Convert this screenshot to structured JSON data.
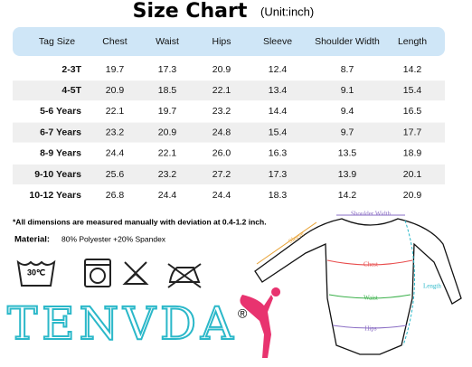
{
  "header": {
    "title": "Size Chart",
    "unit": "(Unit:inch)"
  },
  "table": {
    "columns": [
      "Tag Size",
      "Chest",
      "Waist",
      "Hips",
      "Sleeve",
      "Shoulder Width",
      "Length"
    ],
    "rows": [
      [
        "2-3T",
        "19.7",
        "17.3",
        "20.9",
        "12.4",
        "8.7",
        "14.2"
      ],
      [
        "4-5T",
        "20.9",
        "18.5",
        "22.1",
        "13.4",
        "9.1",
        "15.4"
      ],
      [
        "5-6 Years",
        "22.1",
        "19.7",
        "23.2",
        "14.4",
        "9.4",
        "16.5"
      ],
      [
        "6-7 Years",
        "23.2",
        "20.9",
        "24.8",
        "15.4",
        "9.7",
        "17.7"
      ],
      [
        "8-9 Years",
        "24.4",
        "22.1",
        "26.0",
        "16.3",
        "13.5",
        "18.9"
      ],
      [
        "9-10 Years",
        "25.6",
        "23.2",
        "27.2",
        "17.3",
        "13.9",
        "20.1"
      ],
      [
        "10-12 Years",
        "26.8",
        "24.4",
        "24.4",
        "18.3",
        "14.2",
        "20.9"
      ]
    ]
  },
  "notes": {
    "disclaimer": "*All dimensions are measured manually with deviation at 0.4-1.2 inch.",
    "material_label": "Material:",
    "material": "80% Polyester +20% Spandex"
  },
  "care": {
    "wash_temp": "30℃"
  },
  "brand": {
    "name": "TENVDA",
    "mark": "®"
  },
  "diagram": {
    "shoulder": "Shoulder Width",
    "sleeve": "Sleeve",
    "chest": "Chest",
    "waist": "Waist",
    "length": "Length",
    "hips": "Hips"
  }
}
